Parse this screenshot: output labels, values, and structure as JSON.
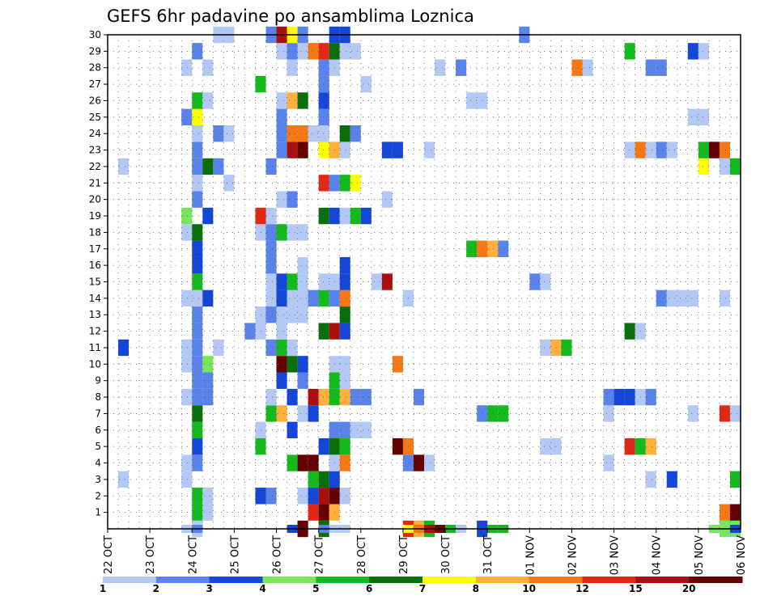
{
  "chart_data": {
    "type": "heatmap",
    "title": "GEFS 6hr padavine po ansamblima Loznica",
    "xlabel": "",
    "ylabel": "",
    "x_start_label": "22 OCT",
    "x_tick_labels": [
      "22 OCT",
      "23 OCT",
      "24 OCT",
      "25 OCT",
      "26 OCT",
      "27 OCT",
      "28 OCT",
      "29 OCT",
      "30 OCT",
      "31 OCT",
      "01 NOV",
      "02 NOV",
      "03 NOV",
      "04 NOV",
      "05 NOV",
      "06 NOV"
    ],
    "x_units": "days since 22 OCT 00Z",
    "xlim": [
      0,
      15
    ],
    "y_tick_labels": [
      "1",
      "2",
      "3",
      "4",
      "5",
      "6",
      "7",
      "8",
      "9",
      "10",
      "11",
      "12",
      "13",
      "14",
      "15",
      "16",
      "17",
      "18",
      "19",
      "20",
      "21",
      "22",
      "23",
      "24",
      "25",
      "26",
      "27",
      "28",
      "29",
      "30"
    ],
    "ylim": [
      0,
      30
    ],
    "grid": true,
    "colorbar": {
      "orientation": "horizontal",
      "position": "bottom",
      "tick_labels": [
        "1",
        "2",
        "3",
        "4",
        "5",
        "6",
        "7",
        "8",
        "10",
        "12",
        "15",
        "20"
      ],
      "colors": [
        "#b4c8f5",
        "#5a82eb",
        "#1446d7",
        "#78e65a",
        "#14b91e",
        "#0a6e0a",
        "#ffff00",
        "#ffaf3c",
        "#f57814",
        "#e12814",
        "#aa0f0f",
        "#640000"
      ]
    },
    "cell_note": "cells: [member, day_offset, precip_mm]; day_offset is start of 6-hr step in days since 22 OCT 00Z",
    "cells": [
      [
        0,
        2.0,
        1
      ],
      [
        0,
        4.5,
        20
      ],
      [
        0,
        5.0,
        6
      ],
      [
        0,
        7.0,
        12
      ],
      [
        0,
        7.25,
        8
      ],
      [
        0,
        7.5,
        5
      ],
      [
        0,
        8.75,
        3
      ],
      [
        0,
        14.5,
        4
      ],
      [
        0,
        14.75,
        4
      ],
      [
        1,
        2.0,
        5
      ],
      [
        1,
        2.25,
        1
      ],
      [
        1,
        4.75,
        12
      ],
      [
        1,
        5.0,
        20
      ],
      [
        1,
        5.25,
        8
      ],
      [
        1,
        14.5,
        10
      ],
      [
        1,
        14.75,
        20
      ],
      [
        2,
        2.0,
        5
      ],
      [
        2,
        2.25,
        1
      ],
      [
        2,
        3.5,
        3
      ],
      [
        2,
        3.75,
        2
      ],
      [
        2,
        4.5,
        1
      ],
      [
        2,
        4.75,
        3
      ],
      [
        2,
        5.0,
        15
      ],
      [
        2,
        5.25,
        20
      ],
      [
        2,
        5.5,
        1
      ],
      [
        3,
        0.25,
        1
      ],
      [
        3,
        1.75,
        1
      ],
      [
        3,
        4.75,
        5
      ],
      [
        3,
        5.0,
        6
      ],
      [
        3,
        5.25,
        3
      ],
      [
        3,
        12.75,
        1
      ],
      [
        3,
        13.25,
        3
      ],
      [
        3,
        14.75,
        5
      ],
      [
        4,
        1.75,
        1
      ],
      [
        4,
        2.0,
        2
      ],
      [
        4,
        4.25,
        5
      ],
      [
        4,
        4.5,
        20
      ],
      [
        4,
        4.75,
        20
      ],
      [
        4,
        5.25,
        1
      ],
      [
        4,
        5.5,
        10
      ],
      [
        4,
        7.0,
        2
      ],
      [
        4,
        7.25,
        20
      ],
      [
        4,
        7.5,
        1
      ],
      [
        4,
        11.75,
        1
      ],
      [
        5,
        2.0,
        3
      ],
      [
        5,
        3.5,
        5
      ],
      [
        5,
        5.0,
        3
      ],
      [
        5,
        5.25,
        6
      ],
      [
        5,
        5.5,
        5
      ],
      [
        5,
        6.75,
        20
      ],
      [
        5,
        7.0,
        10
      ],
      [
        5,
        10.25,
        1
      ],
      [
        5,
        10.5,
        1
      ],
      [
        5,
        12.25,
        12
      ],
      [
        5,
        12.5,
        5
      ],
      [
        5,
        12.75,
        8
      ],
      [
        6,
        2.0,
        5
      ],
      [
        6,
        3.5,
        1
      ],
      [
        6,
        4.25,
        3
      ],
      [
        6,
        5.25,
        2
      ],
      [
        6,
        5.5,
        2
      ],
      [
        6,
        5.75,
        1
      ],
      [
        6,
        6.0,
        1
      ],
      [
        7,
        2.0,
        6
      ],
      [
        7,
        3.75,
        5
      ],
      [
        7,
        4.0,
        8
      ],
      [
        7,
        4.5,
        1
      ],
      [
        7,
        4.75,
        3
      ],
      [
        7,
        8.75,
        2
      ],
      [
        7,
        9.0,
        5
      ],
      [
        7,
        9.25,
        5
      ],
      [
        7,
        11.75,
        1
      ],
      [
        7,
        13.75,
        1
      ],
      [
        7,
        14.5,
        12
      ],
      [
        7,
        14.75,
        1
      ],
      [
        8,
        1.75,
        1
      ],
      [
        8,
        2.0,
        2
      ],
      [
        8,
        2.25,
        2
      ],
      [
        8,
        3.75,
        1
      ],
      [
        8,
        4.25,
        3
      ],
      [
        8,
        4.75,
        15
      ],
      [
        8,
        5.0,
        8
      ],
      [
        8,
        5.25,
        5
      ],
      [
        8,
        5.5,
        8
      ],
      [
        8,
        5.75,
        2
      ],
      [
        8,
        6.0,
        2
      ],
      [
        8,
        7.25,
        2
      ],
      [
        8,
        11.75,
        2
      ],
      [
        8,
        12.0,
        3
      ],
      [
        8,
        12.25,
        3
      ],
      [
        8,
        12.5,
        1
      ],
      [
        8,
        12.75,
        2
      ],
      [
        9,
        2.0,
        2
      ],
      [
        9,
        2.25,
        2
      ],
      [
        9,
        4.0,
        3
      ],
      [
        9,
        4.5,
        2
      ],
      [
        9,
        5.25,
        5
      ],
      [
        9,
        5.5,
        1
      ],
      [
        10,
        1.75,
        1
      ],
      [
        10,
        2.0,
        2
      ],
      [
        10,
        2.25,
        4
      ],
      [
        10,
        4.0,
        20
      ],
      [
        10,
        4.25,
        6
      ],
      [
        10,
        4.5,
        3
      ],
      [
        10,
        5.25,
        1
      ],
      [
        10,
        5.5,
        1
      ],
      [
        10,
        6.75,
        11
      ],
      [
        11,
        0.25,
        3
      ],
      [
        11,
        1.75,
        1
      ],
      [
        11,
        2.0,
        2
      ],
      [
        11,
        2.5,
        1
      ],
      [
        11,
        3.75,
        2
      ],
      [
        11,
        4.0,
        5
      ],
      [
        11,
        4.25,
        1
      ],
      [
        11,
        10.25,
        1
      ],
      [
        11,
        10.5,
        8
      ],
      [
        11,
        10.75,
        5
      ],
      [
        12,
        2.0,
        2
      ],
      [
        12,
        3.25,
        2
      ],
      [
        12,
        3.5,
        1
      ],
      [
        12,
        4.0,
        1
      ],
      [
        12,
        5.0,
        6
      ],
      [
        12,
        5.25,
        15
      ],
      [
        12,
        5.5,
        3
      ],
      [
        12,
        12.25,
        6
      ],
      [
        12,
        12.5,
        1
      ],
      [
        13,
        2.0,
        2
      ],
      [
        13,
        3.5,
        1
      ],
      [
        13,
        3.75,
        2
      ],
      [
        13,
        4.0,
        1
      ],
      [
        13,
        4.25,
        1
      ],
      [
        13,
        4.5,
        1
      ],
      [
        13,
        5.5,
        6
      ],
      [
        14,
        1.75,
        1
      ],
      [
        14,
        2.0,
        1
      ],
      [
        14,
        2.25,
        3
      ],
      [
        14,
        3.75,
        1
      ],
      [
        14,
        4.0,
        3
      ],
      [
        14,
        4.25,
        1
      ],
      [
        14,
        4.5,
        1
      ],
      [
        14,
        4.75,
        2
      ],
      [
        14,
        5.0,
        5
      ],
      [
        14,
        5.25,
        2
      ],
      [
        14,
        5.5,
        10
      ],
      [
        14,
        7.0,
        1
      ],
      [
        14,
        13.0,
        2
      ],
      [
        14,
        13.25,
        1
      ],
      [
        14,
        13.5,
        1
      ],
      [
        14,
        13.75,
        1
      ],
      [
        14,
        14.5,
        1
      ],
      [
        15,
        2.0,
        5
      ],
      [
        15,
        3.75,
        1
      ],
      [
        15,
        4.0,
        3
      ],
      [
        15,
        4.25,
        5
      ],
      [
        15,
        4.5,
        1
      ],
      [
        15,
        5.0,
        1
      ],
      [
        15,
        5.25,
        1
      ],
      [
        15,
        5.5,
        3
      ],
      [
        15,
        6.25,
        1
      ],
      [
        15,
        6.5,
        15
      ],
      [
        15,
        10.0,
        2
      ],
      [
        15,
        10.25,
        1
      ],
      [
        16,
        2.0,
        3
      ],
      [
        16,
        3.75,
        2
      ],
      [
        16,
        4.5,
        1
      ],
      [
        16,
        5.5,
        3
      ],
      [
        17,
        2.0,
        3
      ],
      [
        17,
        3.75,
        2
      ],
      [
        17,
        8.5,
        5
      ],
      [
        17,
        8.75,
        10
      ],
      [
        17,
        9.0,
        8
      ],
      [
        17,
        9.25,
        2
      ],
      [
        18,
        1.75,
        1
      ],
      [
        18,
        2.0,
        6
      ],
      [
        18,
        3.5,
        1
      ],
      [
        18,
        3.75,
        2
      ],
      [
        18,
        4.0,
        5
      ],
      [
        18,
        4.25,
        1
      ],
      [
        18,
        4.5,
        1
      ],
      [
        19,
        1.75,
        4
      ],
      [
        19,
        2.25,
        3
      ],
      [
        19,
        3.5,
        14
      ],
      [
        19,
        3.75,
        1
      ],
      [
        19,
        5.0,
        6
      ],
      [
        19,
        5.25,
        3
      ],
      [
        19,
        5.5,
        1
      ],
      [
        19,
        5.75,
        5
      ],
      [
        19,
        6.0,
        3
      ],
      [
        20,
        2.0,
        2
      ],
      [
        20,
        4.0,
        1
      ],
      [
        20,
        4.25,
        2
      ],
      [
        20,
        6.5,
        1
      ],
      [
        21,
        2.0,
        1
      ],
      [
        21,
        2.75,
        1
      ],
      [
        21,
        5.0,
        12
      ],
      [
        21,
        5.25,
        2
      ],
      [
        21,
        5.5,
        5
      ],
      [
        21,
        5.75,
        7
      ],
      [
        22,
        0.25,
        1
      ],
      [
        22,
        2.0,
        2
      ],
      [
        22,
        2.25,
        6
      ],
      [
        22,
        2.5,
        2
      ],
      [
        22,
        3.75,
        2
      ],
      [
        22,
        14.0,
        7
      ],
      [
        22,
        14.5,
        1
      ],
      [
        22,
        14.75,
        5
      ],
      [
        23,
        2.0,
        2
      ],
      [
        23,
        4.0,
        2
      ],
      [
        23,
        4.25,
        15
      ],
      [
        23,
        4.5,
        20
      ],
      [
        23,
        5.0,
        7
      ],
      [
        23,
        5.25,
        8
      ],
      [
        23,
        5.5,
        1
      ],
      [
        23,
        6.5,
        3
      ],
      [
        23,
        6.75,
        3
      ],
      [
        23,
        7.5,
        1
      ],
      [
        23,
        12.25,
        1
      ],
      [
        23,
        12.5,
        10
      ],
      [
        23,
        12.75,
        1
      ],
      [
        23,
        13.0,
        2
      ],
      [
        23,
        13.25,
        1
      ],
      [
        23,
        14.0,
        5
      ],
      [
        23,
        14.25,
        20
      ],
      [
        23,
        14.5,
        10
      ],
      [
        24,
        2.0,
        1
      ],
      [
        24,
        2.5,
        2
      ],
      [
        24,
        2.75,
        1
      ],
      [
        24,
        4.0,
        2
      ],
      [
        24,
        4.25,
        10
      ],
      [
        24,
        4.5,
        10
      ],
      [
        24,
        4.75,
        1
      ],
      [
        24,
        5.0,
        1
      ],
      [
        24,
        5.5,
        6
      ],
      [
        24,
        5.75,
        2
      ],
      [
        25,
        1.75,
        2
      ],
      [
        25,
        2.0,
        7
      ],
      [
        25,
        4.0,
        2
      ],
      [
        25,
        5.0,
        2
      ],
      [
        25,
        13.75,
        1
      ],
      [
        25,
        14.0,
        1
      ],
      [
        26,
        2.0,
        5
      ],
      [
        26,
        2.25,
        1
      ],
      [
        26,
        4.0,
        1
      ],
      [
        26,
        4.25,
        8
      ],
      [
        26,
        4.5,
        6
      ],
      [
        26,
        5.0,
        3
      ],
      [
        26,
        8.5,
        1
      ],
      [
        26,
        8.75,
        1
      ],
      [
        27,
        3.5,
        5
      ],
      [
        27,
        5.0,
        2
      ],
      [
        27,
        6.0,
        1
      ],
      [
        28,
        1.75,
        1
      ],
      [
        28,
        2.25,
        1
      ],
      [
        28,
        4.25,
        1
      ],
      [
        28,
        5.0,
        2
      ],
      [
        28,
        5.25,
        1
      ],
      [
        28,
        7.75,
        1
      ],
      [
        28,
        8.25,
        2
      ],
      [
        28,
        11.0,
        10
      ],
      [
        28,
        11.25,
        1
      ],
      [
        28,
        12.75,
        2
      ],
      [
        28,
        13.0,
        2
      ],
      [
        29,
        2.0,
        2
      ],
      [
        29,
        4.0,
        1
      ],
      [
        29,
        4.25,
        2
      ],
      [
        29,
        4.5,
        1
      ],
      [
        29,
        4.75,
        10
      ],
      [
        29,
        5.0,
        12
      ],
      [
        29,
        5.25,
        6
      ],
      [
        29,
        5.5,
        1
      ],
      [
        29,
        5.75,
        1
      ],
      [
        29,
        12.25,
        5
      ],
      [
        29,
        13.75,
        3
      ],
      [
        29,
        14.0,
        1
      ],
      [
        30,
        2.5,
        1
      ],
      [
        30,
        2.75,
        1
      ],
      [
        30,
        3.75,
        2
      ],
      [
        30,
        4.0,
        15
      ],
      [
        30,
        4.25,
        7
      ],
      [
        30,
        4.5,
        2
      ],
      [
        30,
        5.25,
        3
      ],
      [
        30,
        5.5,
        3
      ],
      [
        30,
        9.75,
        2
      ]
    ],
    "zero_row_note": "colored cells drawn on the bottom axis line (below member 1)",
    "zero_row": [
      [
        1.75,
        1
      ],
      [
        2.0,
        2
      ],
      [
        4.25,
        3
      ],
      [
        4.5,
        20
      ],
      [
        5.0,
        2
      ],
      [
        5.25,
        1
      ],
      [
        5.5,
        1
      ],
      [
        7.0,
        7
      ],
      [
        7.25,
        11
      ],
      [
        7.5,
        15
      ],
      [
        7.75,
        20
      ],
      [
        8.0,
        5
      ],
      [
        8.25,
        1
      ],
      [
        9.0,
        5
      ],
      [
        9.25,
        5
      ],
      [
        14.25,
        4
      ],
      [
        14.75,
        3
      ]
    ]
  }
}
